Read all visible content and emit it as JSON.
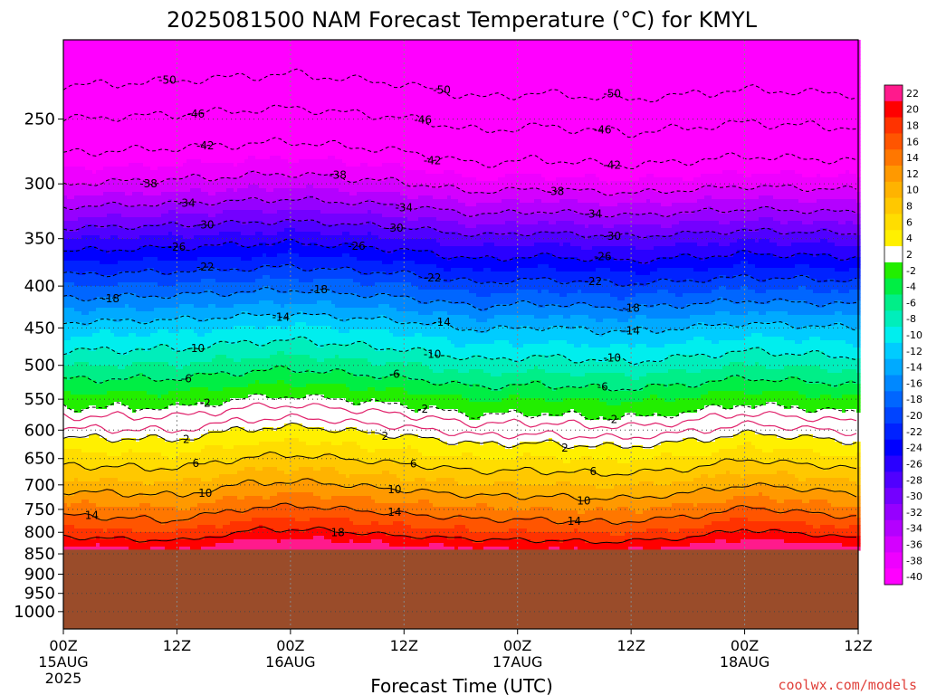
{
  "chart_data": {
    "type": "heatmap",
    "title": "2025081500 NAM Forecast Temperature (°C) for KMYL",
    "xlabel": "Forecast Time (UTC)",
    "ylabel": "",
    "x_ticks": [
      {
        "label": "00Z",
        "sub": [
          "15AUG",
          "2025"
        ],
        "hour": 0
      },
      {
        "label": "12Z",
        "sub": [],
        "hour": 12
      },
      {
        "label": "00Z",
        "sub": [
          "16AUG"
        ],
        "hour": 24
      },
      {
        "label": "12Z",
        "sub": [],
        "hour": 36
      },
      {
        "label": "00Z",
        "sub": [
          "17AUG"
        ],
        "hour": 48
      },
      {
        "label": "12Z",
        "sub": [],
        "hour": 60
      },
      {
        "label": "00Z",
        "sub": [
          "18AUG"
        ],
        "hour": 72
      },
      {
        "label": "12Z",
        "sub": [],
        "hour": 84
      }
    ],
    "x_range_hours": [
      0,
      84
    ],
    "y_ticks": [
      250,
      300,
      350,
      400,
      450,
      500,
      550,
      600,
      650,
      700,
      750,
      800,
      850,
      900,
      950,
      1000
    ],
    "y_axis": "pressure (hPa), log scale, decreasing upward",
    "y_range_hpa": [
      1050,
      200
    ],
    "surface_pressure_hpa": 840,
    "grid": true,
    "colorbar": {
      "labels": [
        22,
        20,
        18,
        16,
        14,
        12,
        10,
        8,
        6,
        4,
        2,
        -2,
        -4,
        -6,
        -8,
        -10,
        -12,
        -14,
        -16,
        -18,
        -20,
        -22,
        -24,
        -26,
        -28,
        -30,
        -32,
        -34,
        -36,
        -38,
        -40
      ],
      "colors": [
        "#ff1a8c",
        "#ff0000",
        "#ff3300",
        "#ff5500",
        "#ff7700",
        "#ff9900",
        "#ffb300",
        "#ffc800",
        "#ffdd00",
        "#fff000",
        "#ffffff",
        "#22ee00",
        "#00ee44",
        "#00ee88",
        "#00eebb",
        "#00eeee",
        "#00ccff",
        "#00aaff",
        "#0088ff",
        "#0066ff",
        "#0044ff",
        "#0022ff",
        "#0000ff",
        "#2a00ff",
        "#5000ff",
        "#7400ff",
        "#9600ff",
        "#b400ff",
        "#d400ff",
        "#ee00ff",
        "#ff00ff"
      ]
    },
    "contour_levels": [
      -50,
      -46,
      -42,
      -38,
      -34,
      -30,
      -26,
      -22,
      -18,
      -14,
      -10,
      -6,
      -2,
      2,
      6,
      10,
      14,
      18
    ],
    "contour_labels": [
      {
        "v": -50,
        "h": [
          11,
          40,
          58
        ]
      },
      {
        "v": -46,
        "h": [
          14,
          38,
          57
        ]
      },
      {
        "v": -42,
        "h": [
          15,
          39,
          58
        ]
      },
      {
        "v": -38,
        "h": [
          9,
          29,
          52
        ]
      },
      {
        "v": -34,
        "h": [
          13,
          36,
          56
        ]
      },
      {
        "v": -30,
        "h": [
          15,
          35,
          58
        ]
      },
      {
        "v": -26,
        "h": [
          12,
          31,
          57
        ]
      },
      {
        "v": -22,
        "h": [
          15,
          39,
          56
        ]
      },
      {
        "v": -18,
        "h": [
          5,
          27,
          60
        ]
      },
      {
        "v": -14,
        "h": [
          23,
          40,
          60
        ]
      },
      {
        "v": -10,
        "h": [
          14,
          39,
          58
        ]
      },
      {
        "v": -6,
        "h": [
          13,
          35,
          57
        ]
      },
      {
        "v": -2,
        "h": [
          15,
          38,
          58
        ]
      },
      {
        "v": 2,
        "h": [
          13,
          34,
          53
        ]
      },
      {
        "v": 6,
        "h": [
          14,
          37,
          56
        ]
      },
      {
        "v": 10,
        "h": [
          15,
          35,
          55
        ]
      },
      {
        "v": 14,
        "h": [
          3,
          35,
          54
        ]
      },
      {
        "v": 18,
        "h": [
          29
        ]
      }
    ],
    "profile": {
      "levels_hpa": [
        200,
        250,
        300,
        350,
        400,
        450,
        500,
        550,
        600,
        650,
        700,
        750,
        800,
        830
      ],
      "temps_c": [
        -55,
        -46,
        -38,
        -28,
        -20,
        -13,
        -8,
        -3,
        1,
        5,
        9,
        13,
        17,
        20
      ]
    },
    "surface_time_variation_c": {
      "hours": [
        0,
        12,
        20,
        26,
        36,
        44,
        50,
        58,
        66,
        72,
        80,
        84
      ],
      "offsets": [
        0,
        -1.0,
        1.4,
        1.6,
        0.2,
        -0.6,
        -0.8,
        -1.2,
        -0.2,
        1.6,
        0.4,
        -0.4
      ]
    },
    "upper_time_variation_c": {
      "hours": [
        0,
        12,
        24,
        36,
        44,
        50,
        60,
        72,
        84
      ],
      "offsets": [
        0,
        0.6,
        1.4,
        0.2,
        -1.4,
        -0.8,
        -1.6,
        -0.4,
        -1.0
      ]
    }
  },
  "credit": "coolwx.com/models"
}
